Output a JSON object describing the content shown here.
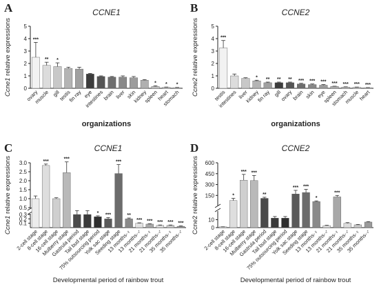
{
  "chart_data": [
    {
      "panel": "A",
      "type": "bar",
      "title": "CCNE1",
      "ylabel": "Ccne1 relative expressions",
      "ylabel_italic": "Ccne1",
      "ylabel_rest": " relative expressions",
      "xlabel": "organizations",
      "ylim": [
        0,
        5
      ],
      "yticks": [
        "0",
        "1",
        "2",
        "3",
        "4",
        "5"
      ],
      "categories": [
        "ovary",
        "muscle",
        "gill",
        "testis",
        "fin ray",
        "eye",
        "intestines",
        "brain",
        "liver",
        "skin",
        "kidney",
        "spleen",
        "heart",
        "stomach"
      ],
      "values": [
        2.5,
        1.85,
        1.75,
        1.6,
        1.55,
        1.15,
        0.95,
        0.9,
        0.9,
        0.85,
        0.65,
        0.15,
        0.08,
        0.05
      ],
      "errors": [
        1.2,
        0.25,
        0.3,
        0.1,
        0.15,
        0.05,
        0.05,
        0.05,
        0.1,
        0.1,
        0.05,
        0.05,
        0.02,
        0.02
      ],
      "sig": [
        "***",
        "**",
        "*",
        "",
        "",
        "",
        "",
        "",
        "",
        "",
        "",
        "*",
        "*",
        "*"
      ]
    },
    {
      "panel": "B",
      "type": "bar",
      "title": "CCNE2",
      "ylabel": "Ccne2 relative expressions",
      "ylabel_italic": "Ccne2",
      "ylabel_rest": " relative expressions",
      "xlabel": "organizations",
      "ylim": [
        0,
        5
      ],
      "yticks": [
        "0",
        "1",
        "2",
        "3",
        "4",
        "5"
      ],
      "categories": [
        "testis",
        "intestines",
        "liver",
        "kidney",
        "fin ray",
        "gill",
        "ovary",
        "brain",
        "skin",
        "eye",
        "spleen",
        "stomach",
        "muscle",
        "heart"
      ],
      "values": [
        3.25,
        1.0,
        0.8,
        0.6,
        0.45,
        0.45,
        0.45,
        0.35,
        0.3,
        0.25,
        0.15,
        0.1,
        0.08,
        0.05
      ],
      "errors": [
        0.6,
        0.15,
        0.05,
        0.05,
        0.05,
        0.05,
        0.05,
        0.05,
        0.05,
        0.05,
        0.02,
        0.02,
        0.02,
        0.01
      ],
      "sig": [
        "***",
        "",
        "",
        "*",
        "**",
        "**",
        "**",
        "***",
        "***",
        "***",
        "***",
        "***",
        "***",
        "***"
      ]
    },
    {
      "panel": "C",
      "type": "bar",
      "title": "CCNE1",
      "ylabel": "Ccne1 relative expressions",
      "ylabel_italic": "Ccne1",
      "ylabel_rest": " relative expressions",
      "xlabel": "Developmental period of rainbow trout",
      "axis_break": true,
      "ylim_lower": [
        0,
        0.3
      ],
      "ylim_upper": [
        0.5,
        3
      ],
      "yticks_lower": [
        "0.1",
        "0.2",
        "0.3"
      ],
      "yticks_upper": [
        "0.5",
        "1.0",
        "1.5",
        "2.0",
        "2.5",
        "3.0"
      ],
      "categories": [
        "2-cell stage",
        "8-cell stage",
        "16-cell stage",
        "Mulberry stage",
        "Gastrula period",
        "Tail bud stage",
        "75% outsourcing period",
        "Yolk sac stage",
        "Seeding stage",
        "13 months-♀",
        "13 months-♂",
        "21 months-♀",
        "21 months-♂",
        "35 months-♀",
        "35 months-♂"
      ],
      "values": [
        1.0,
        2.85,
        1.0,
        2.45,
        0.3,
        0.3,
        0.25,
        0.2,
        2.4,
        0.2,
        0.1,
        0.08,
        0.05,
        0.05,
        0.03
      ],
      "errors": [
        0.15,
        0.08,
        0.05,
        0.6,
        0.03,
        0.03,
        0.02,
        0.03,
        0.5,
        0.02,
        0.01,
        0.01,
        0.01,
        0.01,
        0.01
      ],
      "sig": [
        "",
        "***",
        "",
        "***",
        "",
        "",
        "*",
        "***",
        "***",
        "**",
        "***",
        "***",
        "***",
        "***",
        "***"
      ]
    },
    {
      "panel": "D",
      "type": "bar",
      "title": "CCNE2",
      "ylabel": "Ccne2 relative expressions",
      "ylabel_italic": "",
      "ylabel_rest": "Ccne2 relative expressions",
      "xlabel": "Developmental period of rainbow trout",
      "axis_break": true,
      "ylim_lower": [
        0,
        20
      ],
      "ylim_upper": [
        20,
        600
      ],
      "yticks_lower": [
        "0",
        "10"
      ],
      "yticks_upper": [
        "150",
        "300",
        "450",
        "600"
      ],
      "categories": [
        "2-cell stage",
        "8-cell stage",
        "16-cell stage",
        "Mulberry stage",
        "Gastrula period",
        "Tail bud stage",
        "75% outsourcing period",
        "Yolk sac stage",
        "Seeding stage",
        "13 months-♀",
        "13 months-♂",
        "21 months-♀",
        "21 months-♂",
        "35 months-♀",
        "35 months-♂"
      ],
      "values": [
        1.0,
        80,
        360,
        355,
        110,
        12,
        12,
        170,
        190,
        65,
        2.5,
        130,
        5.5,
        3.5,
        7.0
      ],
      "errors": [
        0.1,
        30,
        80,
        70,
        15,
        2,
        2,
        50,
        45,
        10,
        0.5,
        20,
        0.8,
        0.5,
        0.6
      ],
      "sig": [
        "",
        "*",
        "***",
        "***",
        "**",
        "",
        "",
        "***",
        "***",
        "*",
        "",
        "***",
        "",
        "",
        ""
      ]
    }
  ],
  "panel_labels": [
    "A",
    "B",
    "C",
    "D"
  ]
}
